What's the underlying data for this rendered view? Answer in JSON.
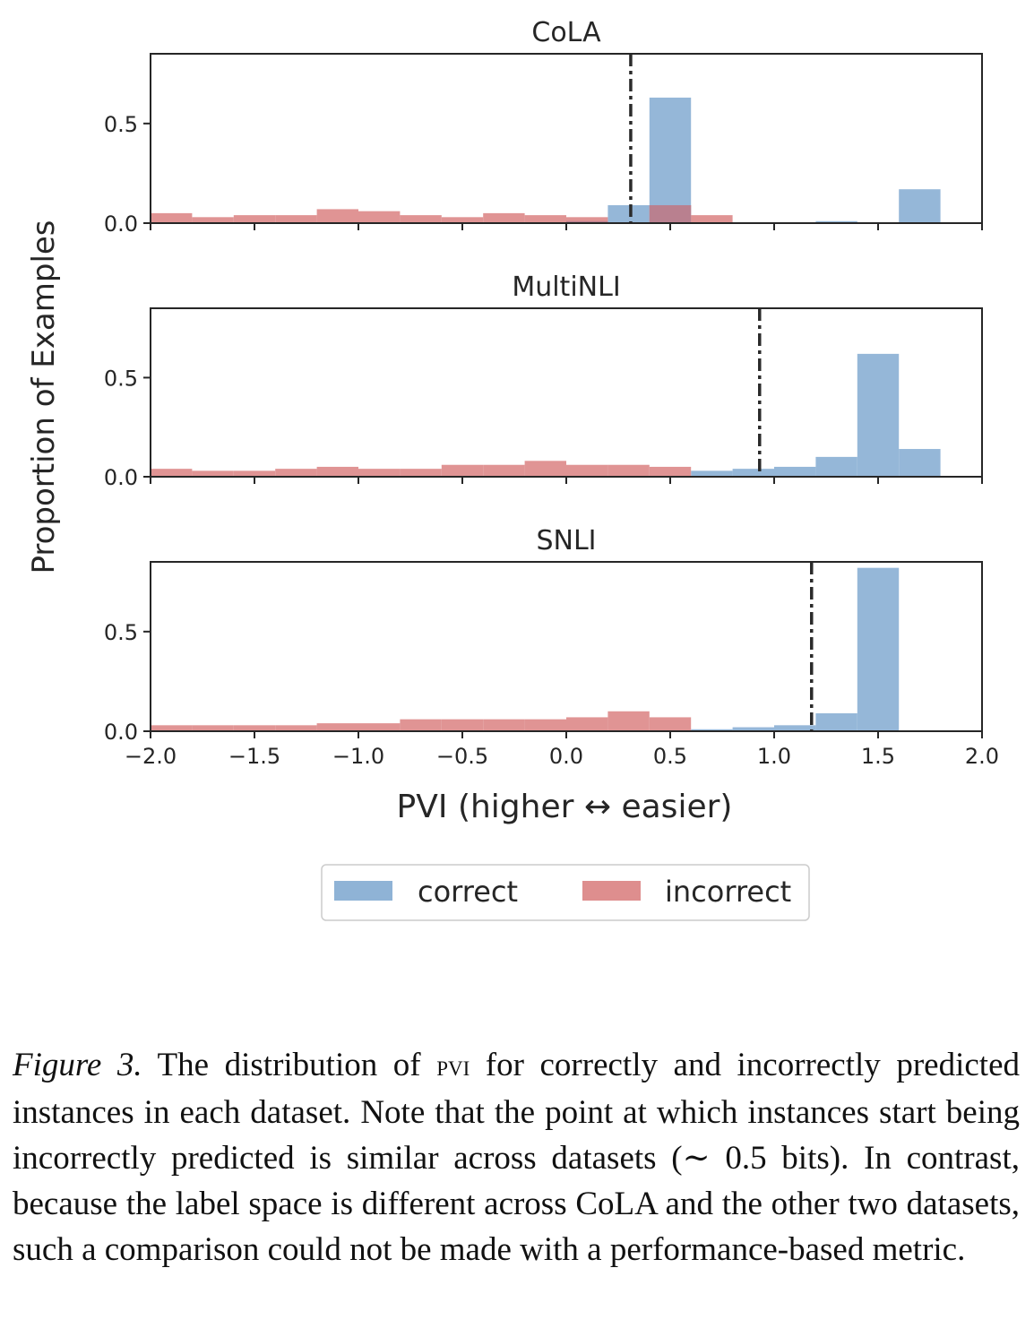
{
  "chart_data": [
    {
      "type": "histogram",
      "title": "CoLA",
      "x": [
        -2.0,
        -1.8,
        -1.6,
        -1.4,
        -1.2,
        -1.0,
        -0.8,
        -0.6,
        -0.4,
        -0.2,
        0.0,
        0.2,
        0.4,
        0.6,
        0.8,
        1.0,
        1.2,
        1.4,
        1.6,
        1.8
      ],
      "series": [
        {
          "name": "correct",
          "values": [
            0,
            0,
            0,
            0,
            0,
            0,
            0,
            0,
            0,
            0,
            0.01,
            0.09,
            0.63,
            0,
            0,
            0,
            0.01,
            0,
            0.17,
            0
          ]
        },
        {
          "name": "incorrect",
          "values": [
            0.05,
            0.03,
            0.04,
            0.04,
            0.07,
            0.06,
            0.04,
            0.03,
            0.05,
            0.04,
            0.03,
            0,
            0.09,
            0.04,
            0,
            0,
            0,
            0,
            0,
            0
          ]
        }
      ],
      "threshold": 0.31,
      "xlim": [
        -2.0,
        2.0
      ],
      "ylim": [
        0,
        0.85
      ],
      "yticks": [
        "0.0",
        "0.5"
      ]
    },
    {
      "type": "histogram",
      "title": "MultiNLI",
      "x": [
        -2.0,
        -1.8,
        -1.6,
        -1.4,
        -1.2,
        -1.0,
        -0.8,
        -0.6,
        -0.4,
        -0.2,
        0.0,
        0.2,
        0.4,
        0.6,
        0.8,
        1.0,
        1.2,
        1.4,
        1.6,
        1.8
      ],
      "series": [
        {
          "name": "correct",
          "values": [
            0,
            0,
            0,
            0,
            0,
            0,
            0,
            0,
            0,
            0,
            0,
            0,
            0,
            0.03,
            0.04,
            0.05,
            0.1,
            0.62,
            0.14,
            0
          ]
        },
        {
          "name": "incorrect",
          "values": [
            0.04,
            0.03,
            0.03,
            0.04,
            0.05,
            0.04,
            0.04,
            0.06,
            0.06,
            0.08,
            0.06,
            0.06,
            0.05,
            0,
            0,
            0,
            0,
            0,
            0,
            0
          ]
        }
      ],
      "threshold": 0.93,
      "xlim": [
        -2.0,
        2.0
      ],
      "ylim": [
        0,
        0.85
      ],
      "yticks": [
        "0.0",
        "0.5"
      ]
    },
    {
      "type": "histogram",
      "title": "SNLI",
      "x": [
        -2.0,
        -1.8,
        -1.6,
        -1.4,
        -1.2,
        -1.0,
        -0.8,
        -0.6,
        -0.4,
        -0.2,
        0.0,
        0.2,
        0.4,
        0.6,
        0.8,
        1.0,
        1.2,
        1.4,
        1.6,
        1.8
      ],
      "series": [
        {
          "name": "correct",
          "values": [
            0,
            0,
            0,
            0,
            0,
            0,
            0,
            0,
            0,
            0,
            0,
            0,
            0,
            0.01,
            0.02,
            0.03,
            0.09,
            0.82,
            0,
            0
          ]
        },
        {
          "name": "incorrect",
          "values": [
            0.03,
            0.03,
            0.03,
            0.03,
            0.04,
            0.04,
            0.06,
            0.06,
            0.06,
            0.06,
            0.07,
            0.1,
            0.07,
            0,
            0,
            0,
            0,
            0,
            0,
            0
          ]
        }
      ],
      "threshold": 1.18,
      "xlim": [
        -2.0,
        2.0
      ],
      "ylim": [
        0,
        0.85
      ],
      "yticks": [
        "0.0",
        "0.5"
      ],
      "xticks": [
        "−2.0",
        "−1.5",
        "−1.0",
        "−0.5",
        "0.0",
        "0.5",
        "1.0",
        "1.5",
        "2.0"
      ]
    }
  ],
  "ylabel": "Proportion of Examples",
  "xlabel": "PVI (higher ↔ easier)",
  "legend": {
    "correct": "correct",
    "incorrect": "incorrect"
  },
  "colors": {
    "correct": "#8fb3d6",
    "incorrect": "#de8e8e",
    "overlap": "#b9808f",
    "threshold": "#2b2b2b"
  },
  "caption": {
    "label": "Figure 3.",
    "part1": " The distribution of ",
    "pvi": "pvi",
    "part2": " for correctly and incorrectly predicted instances in each dataset. Note that the point at which instances start being incorrectly predicted is similar across datasets (∼ 0.5 bits). In contrast, because the label space is different across CoLA and the other two datasets, such a comparison could not be made with a performance-based metric."
  }
}
